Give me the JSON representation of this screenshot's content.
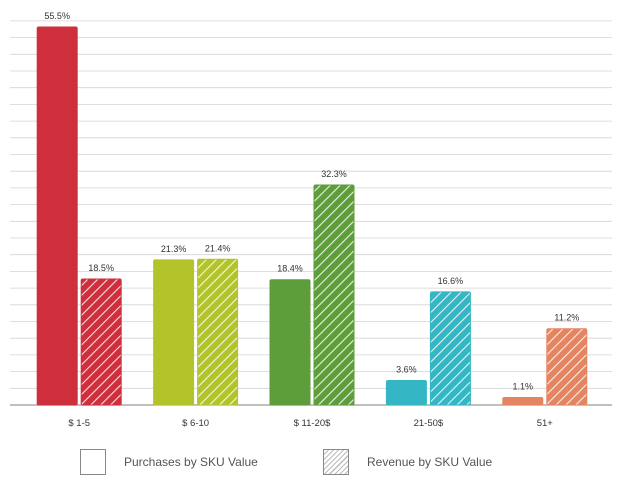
{
  "chart_data": {
    "type": "bar",
    "title": "",
    "xlabel": "",
    "ylabel": "",
    "ylim": [
      0,
      58
    ],
    "grid": true,
    "legend_position": "bottom",
    "categories": [
      "$ 1-5",
      "$ 6-10",
      "$ 11-20$",
      "21-50$",
      "51+"
    ],
    "category_colors": [
      "#cf2e3c",
      "#b3c42a",
      "#5e9e3a",
      "#34b6c4",
      "#e58460"
    ],
    "series": [
      {
        "name": "Purchases by SKU Value",
        "pattern": "solid",
        "values": [
          55.5,
          21.3,
          18.4,
          3.6,
          1.1
        ],
        "labels": [
          "55.5%",
          "21.3%",
          "18.4%",
          "3.6%",
          "1.1%"
        ]
      },
      {
        "name": "Revenue by SKU Value",
        "pattern": "hatched",
        "values": [
          18.5,
          21.4,
          32.3,
          16.6,
          11.2
        ],
        "labels": [
          "18.5%",
          "21.4%",
          "32.3%",
          "16.6%",
          "11.2%"
        ]
      }
    ]
  }
}
